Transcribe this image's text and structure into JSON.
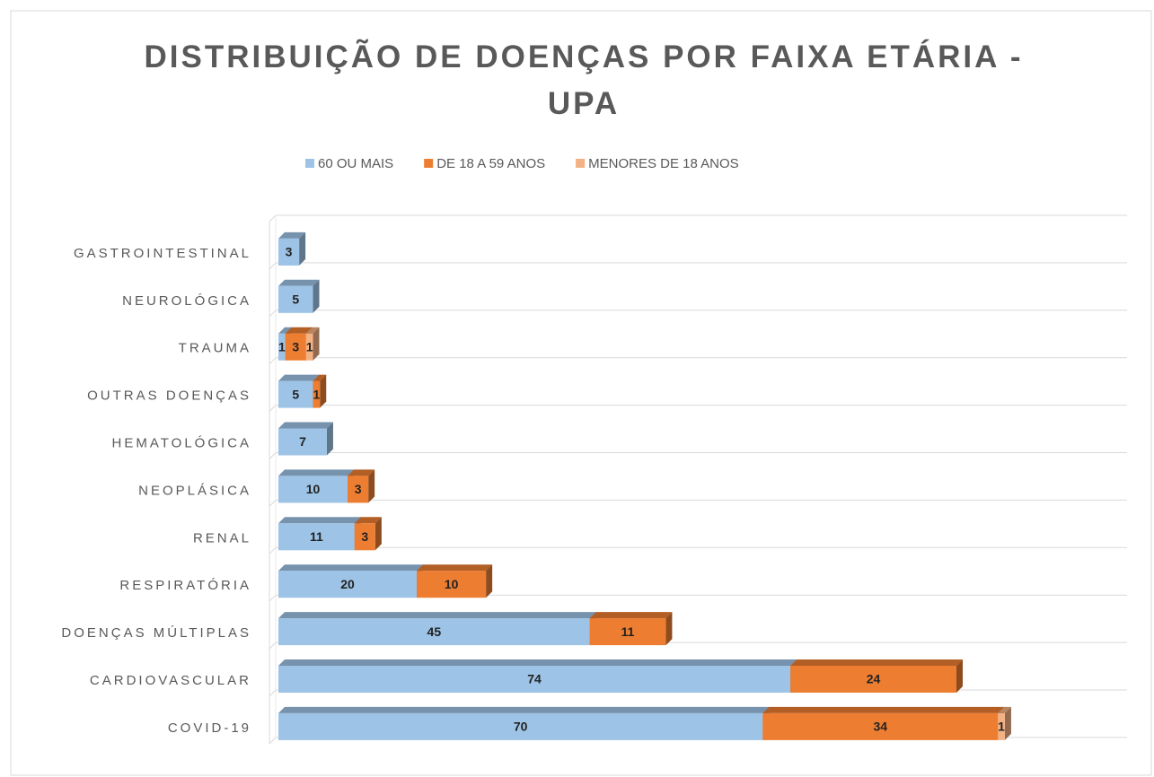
{
  "chart_data": {
    "type": "bar",
    "orientation": "horizontal",
    "stacked": true,
    "title": "DISTRIBUIÇÃO DE DOENÇAS POR FAIXA ETÁRIA - UPA",
    "categories": [
      "GASTROINTESTINAL",
      "NEUROLÓGICA",
      "TRAUMA",
      "OUTRAS DOENÇAS",
      "HEMATOLÓGICA",
      "NEOPLÁSICA",
      "RENAL",
      "RESPIRATÓRIA",
      "DOENÇAS MÚLTIPLAS",
      "CARDIOVASCULAR",
      "COVID-19"
    ],
    "series": [
      {
        "name": "60 OU MAIS",
        "color": "#9dc3e6",
        "values": [
          3,
          5,
          1,
          5,
          7,
          10,
          11,
          20,
          45,
          74,
          70
        ]
      },
      {
        "name": "DE 18 A 59 ANOS",
        "color": "#ed7d31",
        "values": [
          null,
          null,
          3,
          1,
          null,
          3,
          3,
          10,
          11,
          24,
          34
        ]
      },
      {
        "name": "MENORES DE 18 ANOS",
        "color": "#f4b183",
        "values": [
          null,
          null,
          1,
          null,
          null,
          null,
          null,
          null,
          null,
          null,
          1
        ]
      }
    ],
    "grid": true,
    "legend": "top"
  }
}
